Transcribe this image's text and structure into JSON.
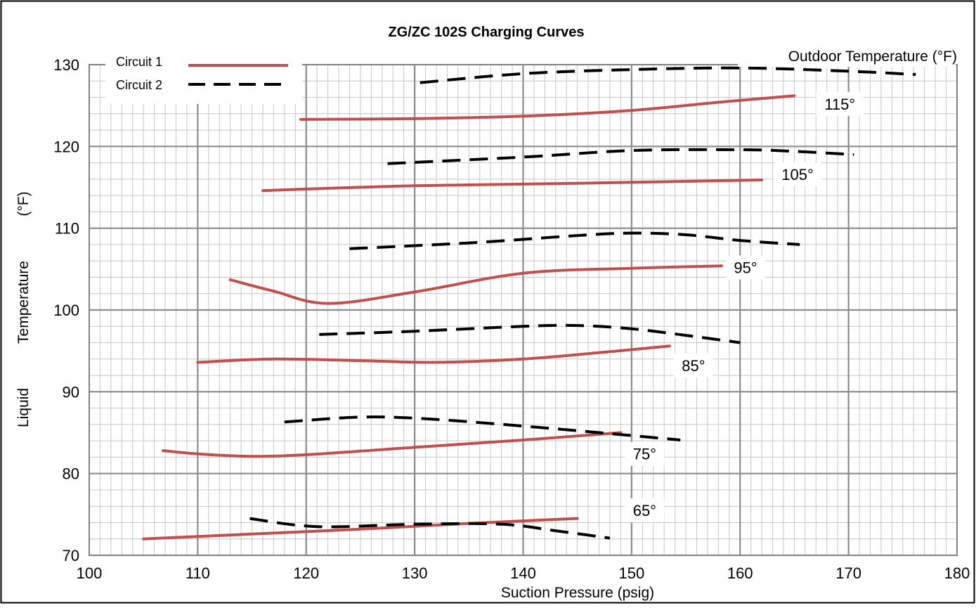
{
  "chart_data": {
    "type": "line",
    "title": "ZG/ZC 102S Charging Curves",
    "xlabel": "Suction Pressure (psig)",
    "ylabel_parts": [
      "Liquid",
      "Temperature",
      "(°F)"
    ],
    "outdoor_label": "Outdoor Temperature (°F)",
    "xlim": [
      100,
      180
    ],
    "ylim": [
      70,
      130
    ],
    "x_ticks": [
      "100",
      "110",
      "120",
      "130",
      "140",
      "150",
      "160",
      "170",
      "180"
    ],
    "y_ticks": [
      "70",
      "80",
      "90",
      "100",
      "110",
      "120",
      "130"
    ],
    "grid": true,
    "legend": {
      "position": "top-left",
      "entries": [
        {
          "name": "Circuit 1",
          "style": "solid",
          "color": "#c0504d"
        },
        {
          "name": "Circuit 2",
          "style": "dashed",
          "color": "#000000"
        }
      ]
    },
    "outdoor_temps": [
      "65°",
      "75°",
      "85°",
      "95°",
      "105°",
      "115°"
    ],
    "circuit1": [
      {
        "outdoor": "65°",
        "x": [
          105,
          115,
          125,
          135,
          145
        ],
        "y": [
          72,
          72.6,
          73.2,
          73.9,
          74.5
        ]
      },
      {
        "outdoor": "75°",
        "x": [
          106.8,
          110,
          115,
          120,
          130,
          140,
          149
        ],
        "y": [
          82.8,
          82.4,
          82.1,
          82.3,
          83.2,
          84.1,
          85
        ]
      },
      {
        "outdoor": "85°",
        "x": [
          110,
          117,
          125,
          132,
          140,
          148,
          153.5
        ],
        "y": [
          93.6,
          94,
          93.8,
          93.6,
          94,
          94.9,
          95.6
        ]
      },
      {
        "outdoor": "95°",
        "x": [
          113,
          117,
          122,
          130,
          140,
          150,
          158.3
        ],
        "y": [
          103.7,
          102.3,
          100.8,
          102.2,
          104.5,
          105.1,
          105.4
        ]
      },
      {
        "outdoor": "105°",
        "x": [
          116,
          130,
          145,
          162
        ],
        "y": [
          114.6,
          115.2,
          115.5,
          115.9
        ]
      },
      {
        "outdoor": "115°",
        "x": [
          119.5,
          130,
          140,
          150,
          158,
          165
        ],
        "y": [
          123.3,
          123.4,
          123.7,
          124.4,
          125.4,
          126.2
        ]
      }
    ],
    "circuit2": [
      {
        "outdoor": "65°",
        "x": [
          114.8,
          121,
          130,
          138,
          143,
          148
        ],
        "y": [
          74.5,
          73.5,
          73.8,
          73.8,
          73,
          72.1
        ]
      },
      {
        "outdoor": "75°",
        "x": [
          118,
          125,
          131,
          140,
          147,
          154.5
        ],
        "y": [
          86.3,
          86.9,
          86.7,
          85.8,
          85,
          84.1
        ]
      },
      {
        "outdoor": "85°",
        "x": [
          121.2,
          130,
          140,
          145,
          150,
          155,
          160
        ],
        "y": [
          97,
          97.4,
          98,
          98.1,
          97.7,
          96.9,
          96
        ]
      },
      {
        "outdoor": "95°",
        "x": [
          124,
          135,
          145,
          150,
          155,
          160,
          165.5
        ],
        "y": [
          107.5,
          108.2,
          109.1,
          109.4,
          109.2,
          108.5,
          108
        ]
      },
      {
        "outdoor": "105°",
        "x": [
          127.5,
          140,
          150,
          160,
          165,
          170.5
        ],
        "y": [
          117.9,
          118.7,
          119.5,
          119.6,
          119.4,
          119
        ]
      },
      {
        "outdoor": "115°",
        "x": [
          130.5,
          140,
          150,
          160,
          170,
          176.2
        ],
        "y": [
          127.8,
          128.9,
          129.4,
          129.6,
          129.2,
          128.8
        ]
      }
    ],
    "temp_label_positions": [
      {
        "text": "65°",
        "x": 151.2,
        "y": 75.5
      },
      {
        "text": "75°",
        "x": 151.2,
        "y": 82.4
      },
      {
        "text": "85°",
        "x": 155.7,
        "y": 93.2
      },
      {
        "text": "95°",
        "x": 160.5,
        "y": 105.2
      },
      {
        "text": "105°",
        "x": 165.3,
        "y": 116.6
      },
      {
        "text": "115°",
        "x": 169.2,
        "y": 125.2
      }
    ]
  }
}
